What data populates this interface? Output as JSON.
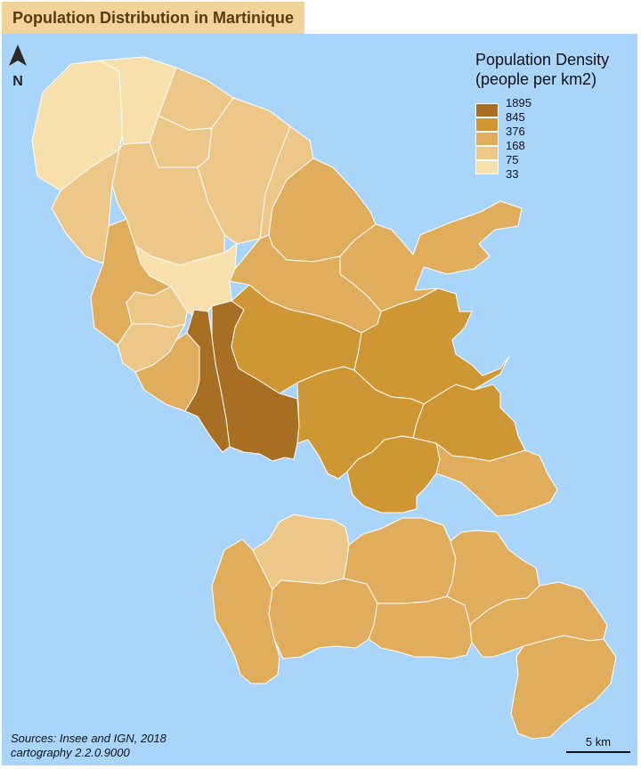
{
  "title": "Population Distribution in Martinique",
  "north": {
    "letter": "N",
    "icon": "north-arrow-icon"
  },
  "legend": {
    "title_line1": "Population Density",
    "title_line2": "(people per km2)",
    "breaks": [
      "1895",
      "845",
      "376",
      "168",
      "75",
      "33"
    ],
    "colors": [
      "#a86e22",
      "#cf9733",
      "#dfad5c",
      "#ecc787",
      "#f7e0ac"
    ]
  },
  "sources": {
    "line1": "Sources: Insee and IGN, 2018",
    "line2": "cartography 2.2.0.9000"
  },
  "scale": {
    "label": "5 km"
  },
  "colors": {
    "sea": "#aad5fb",
    "title_bg": "#f2d39a",
    "title_text": "#5a3a10",
    "border": "#ffffff"
  },
  "communes": [
    {
      "name": "north-tip-west",
      "class": 4
    },
    {
      "name": "north-tip-east",
      "class": 4
    },
    {
      "name": "north-east-coast",
      "class": 3
    },
    {
      "name": "north-coast-mid",
      "class": 3
    },
    {
      "name": "north-central",
      "class": 3
    },
    {
      "name": "north-west-coast",
      "class": 3
    },
    {
      "name": "west-mid-a",
      "class": 3
    },
    {
      "name": "east-upper-coast",
      "class": 3
    },
    {
      "name": "center-north",
      "class": 4
    },
    {
      "name": "west-coast-upper",
      "class": 2
    },
    {
      "name": "west-coast-small",
      "class": 3
    },
    {
      "name": "west-coast-lower",
      "class": 3
    },
    {
      "name": "west-south-a",
      "class": 2
    },
    {
      "name": "east-mid-1",
      "class": 2
    },
    {
      "name": "east-peninsula",
      "class": 2
    },
    {
      "name": "center-mid",
      "class": 2
    },
    {
      "name": "capital-west",
      "class": 0
    },
    {
      "name": "capital-east",
      "class": 0
    },
    {
      "name": "center-upper",
      "class": 1
    },
    {
      "name": "center-south",
      "class": 1
    },
    {
      "name": "east-bay",
      "class": 1
    },
    {
      "name": "center-lower-a",
      "class": 1
    },
    {
      "name": "center-lower-b",
      "class": 1
    },
    {
      "name": "east-coast-c",
      "class": 2
    },
    {
      "name": "east-coast-d",
      "class": 2
    },
    {
      "name": "south-west-tip",
      "class": 3
    },
    {
      "name": "south-west-a",
      "class": 2
    },
    {
      "name": "south-west-b",
      "class": 2
    },
    {
      "name": "south-mid-a",
      "class": 2
    },
    {
      "name": "south-mid-b",
      "class": 2
    },
    {
      "name": "south-east-a",
      "class": 2
    },
    {
      "name": "south-east-b",
      "class": 2
    },
    {
      "name": "south-tip",
      "class": 3
    }
  ]
}
